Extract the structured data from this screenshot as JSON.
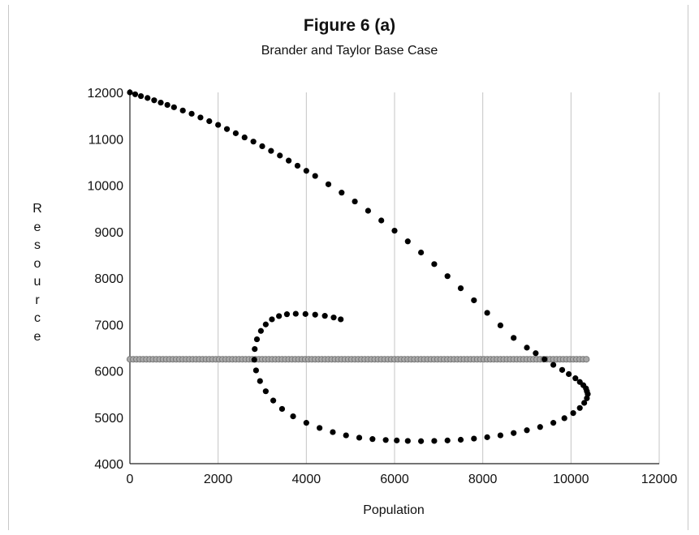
{
  "chart_data": {
    "type": "scatter",
    "title": "Figure 6 (a)",
    "subtitle": "Brander and Taylor Base Case",
    "xlabel": "Population",
    "ylabel": "Resource",
    "xlim": [
      0,
      12000
    ],
    "ylim": [
      4000,
      12000
    ],
    "xticks": [
      "0",
      "2000",
      "4000",
      "6000",
      "8000",
      "10000",
      "12000"
    ],
    "yticks": [
      "4000",
      "5000",
      "6000",
      "7000",
      "8000",
      "9000",
      "10000",
      "11000",
      "12000"
    ],
    "grid": "vertical",
    "legend": "none",
    "series": [
      {
        "color": "#000000",
        "marker": "filled-circle",
        "x": [
          0,
          120,
          250,
          400,
          550,
          700,
          850,
          1000,
          1200,
          1400,
          1600,
          1800,
          2000,
          2200,
          2400,
          2600,
          2800,
          3000,
          3200,
          3400,
          3600,
          3800,
          4000,
          4200,
          4500,
          4800,
          5100,
          5400,
          5700,
          6000,
          6300,
          6600,
          6900,
          7200,
          7500,
          7800,
          8100,
          8400,
          8700,
          9000,
          9200,
          9400,
          9600,
          9800,
          9950,
          10100,
          10200,
          10280,
          10340,
          10360,
          10380,
          10360,
          10300,
          10200,
          10050,
          9850,
          9600,
          9300,
          9000,
          8700,
          8400,
          8100,
          7800,
          7500,
          7200,
          6900,
          6600,
          6300,
          6050,
          5800,
          5500,
          5200,
          4900,
          4600,
          4300,
          4000,
          3700,
          3450,
          3250,
          3080,
          2950,
          2860,
          2820,
          2830,
          2880,
          2970,
          3080,
          3220,
          3380,
          3560,
          3760,
          3980,
          4200,
          4420,
          4620,
          4780
        ],
        "y": [
          12000,
          11960,
          11920,
          11880,
          11830,
          11780,
          11730,
          11680,
          11610,
          11540,
          11460,
          11380,
          11300,
          11210,
          11120,
          11030,
          10940,
          10840,
          10740,
          10640,
          10530,
          10420,
          10310,
          10200,
          10020,
          9840,
          9650,
          9450,
          9240,
          9020,
          8790,
          8550,
          8300,
          8040,
          7780,
          7520,
          7250,
          6980,
          6710,
          6500,
          6380,
          6250,
          6130,
          6020,
          5930,
          5840,
          5760,
          5690,
          5620,
          5560,
          5500,
          5410,
          5310,
          5200,
          5090,
          4980,
          4880,
          4790,
          4720,
          4660,
          4610,
          4570,
          4540,
          4515,
          4500,
          4490,
          4485,
          4490,
          4500,
          4510,
          4530,
          4560,
          4610,
          4680,
          4770,
          4880,
          5020,
          5180,
          5360,
          5560,
          5780,
          6010,
          6240,
          6470,
          6680,
          6860,
          7000,
          7110,
          7180,
          7220,
          7230,
          7225,
          7210,
          7185,
          7150,
          7110
        ]
      },
      {
        "color": "#8f8f8f",
        "marker": "gray-circle",
        "constant_y": 6250,
        "x_start": 0,
        "x_end": 10380,
        "x_step": 75
      }
    ]
  }
}
